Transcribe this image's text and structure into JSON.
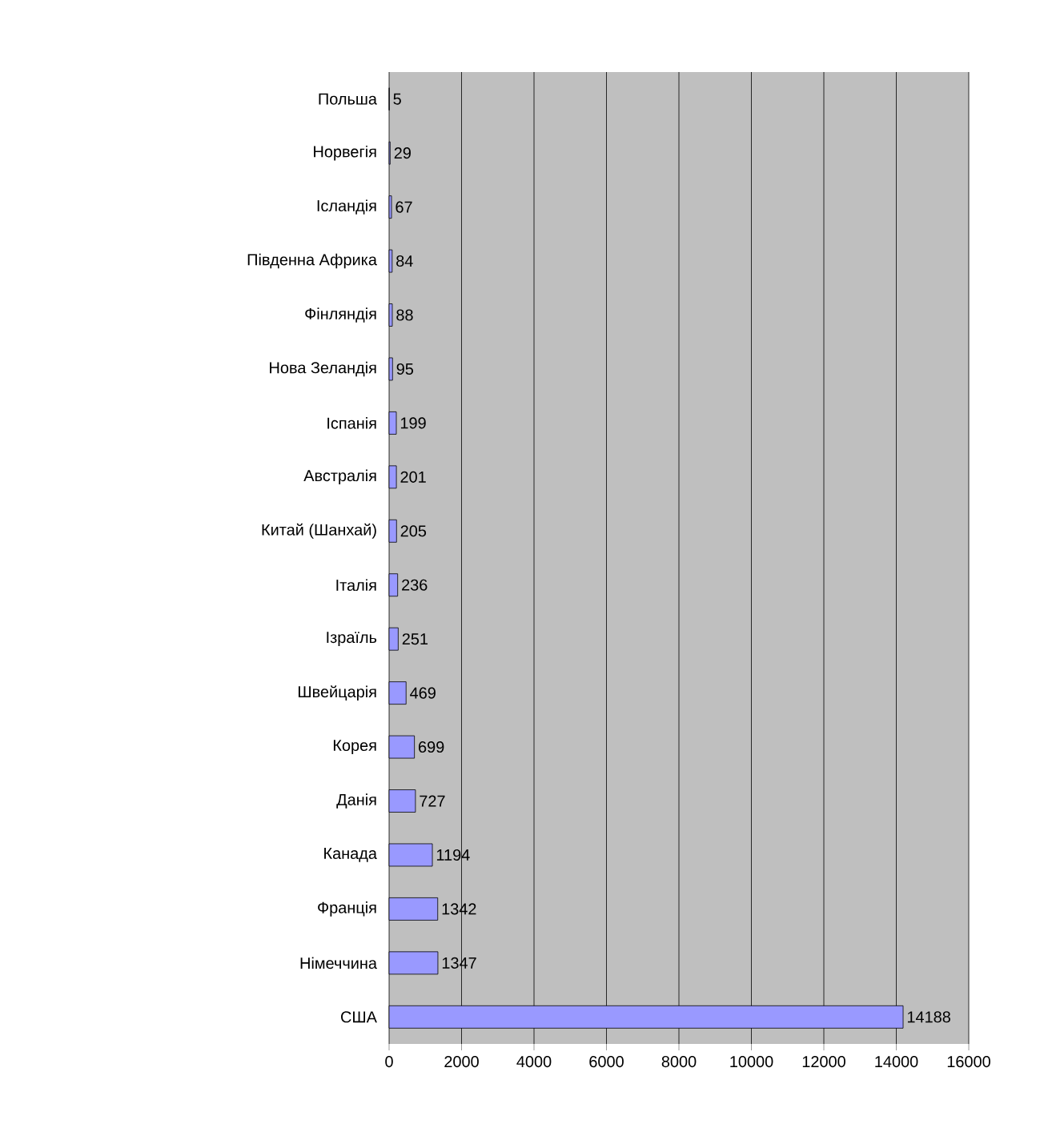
{
  "chart_data": {
    "type": "bar",
    "orientation": "horizontal",
    "categories": [
      "Польша",
      "Норвегія",
      "Ісландія",
      "Південна Африка",
      "Фінляндія",
      "Нова Зеландія",
      "Іспанія",
      "Австралія",
      "Китай (Шанхай)",
      "Італія",
      "Ізраїль",
      "Швейцарія",
      "Корея",
      "Данія",
      "Канада",
      "Франція",
      "Німеччина",
      "США"
    ],
    "values": [
      5,
      29,
      67,
      84,
      88,
      95,
      199,
      201,
      205,
      236,
      251,
      469,
      699,
      727,
      1194,
      1342,
      1347,
      14188
    ],
    "color": "#9999ff",
    "data_labels": true,
    "grid": "x",
    "xlim": [
      0,
      16000
    ],
    "xticks": [
      0,
      2000,
      4000,
      6000,
      8000,
      10000,
      12000,
      14000,
      16000
    ]
  }
}
